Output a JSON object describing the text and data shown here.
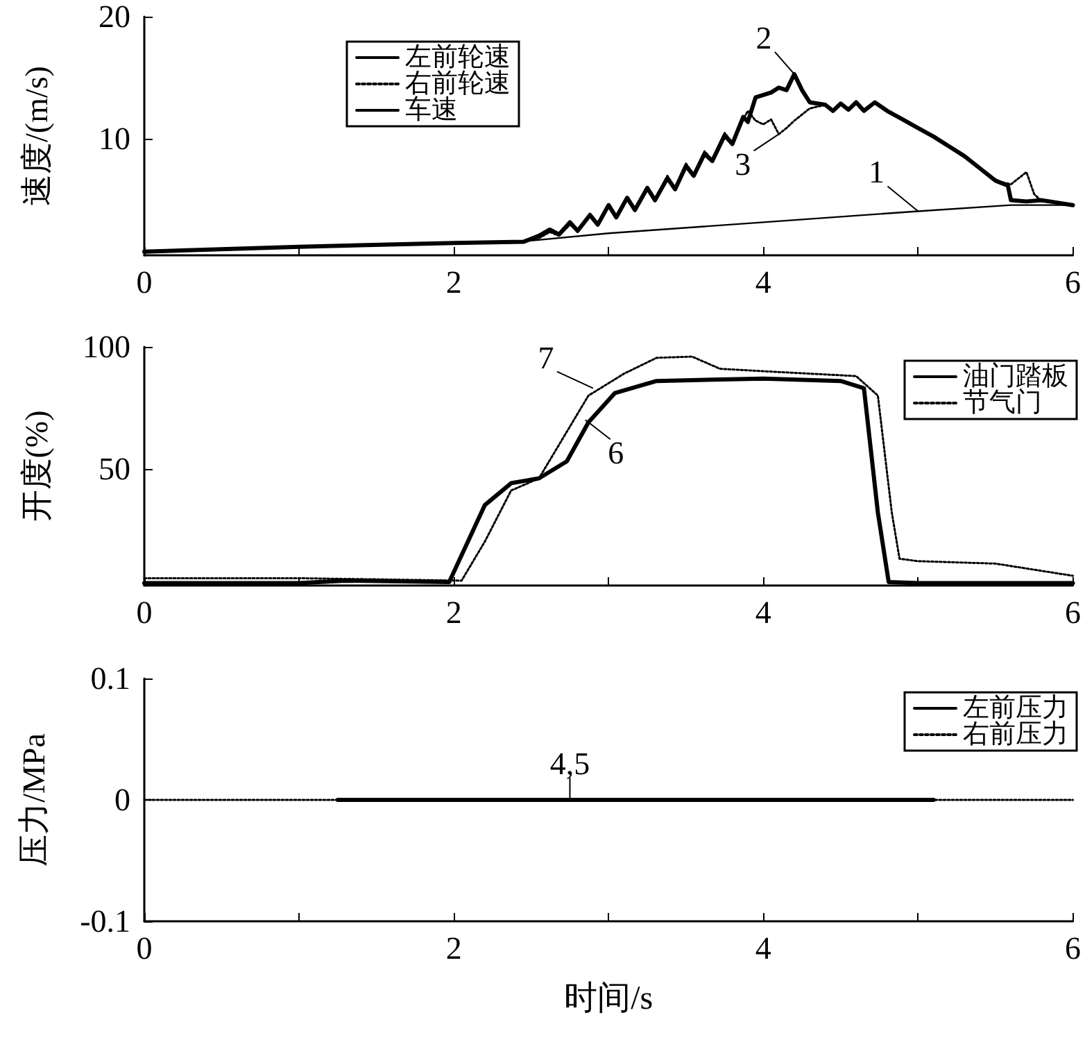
{
  "chart_data": [
    {
      "type": "line",
      "ylabel": "速度/(m/s)",
      "xlim": [
        0,
        6
      ],
      "ylim": [
        0.5,
        20
      ],
      "xticks": [
        0,
        {
          "value": 1,
          "label": null
        },
        2,
        {
          "value": 3,
          "label": null
        },
        4,
        {
          "value": 5,
          "label": null
        },
        6
      ],
      "yticks": [
        10,
        20
      ],
      "legend": "top left",
      "grid": false,
      "marker": "none",
      "annotations": [
        {
          "text": "1",
          "x": 5.0,
          "y": 4.1
        },
        {
          "text": "2",
          "x": 4.2,
          "y": 15.3
        },
        {
          "text": "3",
          "x": 4.1,
          "y": 10.4
        }
      ],
      "series": [
        {
          "name": "左前轮速",
          "color": "#000000",
          "line_style": "solid",
          "x": [
            0,
            1,
            2,
            2.45,
            2.55,
            2.62,
            2.68,
            2.75,
            2.8,
            2.88,
            2.93,
            3.0,
            3.05,
            3.12,
            3.17,
            3.25,
            3.3,
            3.38,
            3.43,
            3.5,
            3.55,
            3.62,
            3.67,
            3.75,
            3.8,
            3.87,
            3.9,
            3.95,
            4.0,
            4.05,
            4.1,
            4.15,
            4.2,
            4.25,
            4.3,
            4.4,
            4.45,
            4.5,
            4.55,
            4.6,
            4.65,
            4.72,
            4.8,
            4.9,
            5.0,
            5.1,
            5.2,
            5.3,
            5.4,
            5.5,
            5.58,
            5.6,
            5.7,
            5.8,
            5.9,
            6.0
          ],
          "values": [
            0.8,
            1.2,
            1.5,
            1.6,
            2.1,
            2.6,
            2.2,
            3.2,
            2.5,
            3.8,
            3.0,
            4.6,
            3.6,
            5.2,
            4.2,
            6.0,
            5.0,
            6.8,
            5.9,
            7.8,
            7.0,
            8.8,
            8.2,
            10.3,
            9.6,
            11.8,
            11.4,
            13.4,
            13.6,
            13.8,
            14.2,
            14.0,
            15.3,
            14.0,
            13.0,
            12.8,
            12.3,
            12.9,
            12.4,
            13.0,
            12.3,
            13.0,
            12.3,
            11.6,
            10.9,
            10.2,
            9.4,
            8.6,
            7.6,
            6.6,
            6.2,
            5.0,
            4.9,
            5.0,
            4.8,
            4.6
          ]
        },
        {
          "name": "右前轮速",
          "color": "#000000",
          "line_style": "dotted",
          "x": [
            0,
            1,
            2,
            2.45,
            2.55,
            2.62,
            2.68,
            2.75,
            2.8,
            2.88,
            2.93,
            3.0,
            3.05,
            3.12,
            3.17,
            3.25,
            3.3,
            3.38,
            3.43,
            3.5,
            3.55,
            3.62,
            3.67,
            3.75,
            3.8,
            3.87,
            3.9,
            3.95,
            4.0,
            4.05,
            4.1,
            4.15,
            4.2,
            4.3,
            4.4,
            4.45,
            4.5,
            4.55,
            4.6,
            4.65,
            4.72,
            4.8,
            4.9,
            5.0,
            5.1,
            5.2,
            5.3,
            5.4,
            5.5,
            5.6,
            5.65,
            5.7,
            5.75,
            5.8,
            5.9,
            6.0
          ],
          "values": [
            0.8,
            1.2,
            1.5,
            1.6,
            1.9,
            2.4,
            2.1,
            3.0,
            2.5,
            3.8,
            3.1,
            4.6,
            3.7,
            5.3,
            4.3,
            6.1,
            5.1,
            7.0,
            6.0,
            8.0,
            7.1,
            9.0,
            8.3,
            10.5,
            9.7,
            11.6,
            12.3,
            11.5,
            11.2,
            11.6,
            10.4,
            10.9,
            11.5,
            12.5,
            12.8,
            12.3,
            12.9,
            12.4,
            13.0,
            12.3,
            13.0,
            12.3,
            11.6,
            10.9,
            10.2,
            9.4,
            8.6,
            7.6,
            6.6,
            6.3,
            6.8,
            7.3,
            5.5,
            4.9,
            4.8,
            4.6
          ]
        },
        {
          "name": "车速",
          "color": "#000000",
          "line_style": "solid",
          "x": [
            0,
            1,
            2,
            2.5,
            3,
            4,
            5,
            5.6,
            6
          ],
          "values": [
            0.8,
            1.2,
            1.5,
            1.7,
            2.3,
            3.2,
            4.1,
            4.6,
            4.6
          ]
        }
      ]
    },
    {
      "type": "line",
      "ylabel": "开度(%)",
      "xlim": [
        0,
        6
      ],
      "ylim": [
        2,
        100
      ],
      "xticks": [
        0,
        {
          "value": 1,
          "label": null
        },
        2,
        {
          "value": 3,
          "label": null
        },
        4,
        {
          "value": 5,
          "label": null
        },
        6
      ],
      "yticks": [
        50,
        100
      ],
      "legend": "top right",
      "grid": false,
      "marker": "none",
      "annotations": [
        {
          "text": "7",
          "x": 2.9,
          "y": 83
        },
        {
          "text": "6",
          "x": 2.85,
          "y": 70
        }
      ],
      "series": [
        {
          "name": "油门踏板",
          "color": "#000000",
          "line_style": "solid",
          "x": [
            0,
            1,
            1.3,
            1.97,
            2.2,
            2.37,
            2.55,
            2.73,
            2.87,
            3.04,
            3.31,
            4.0,
            4.5,
            4.65,
            4.74,
            4.81,
            5.0,
            6.0
          ],
          "values": [
            3,
            3,
            4,
            3.4,
            35,
            44,
            46,
            53,
            69,
            81,
            86,
            87,
            86,
            83,
            32,
            3.4,
            3,
            3
          ]
        },
        {
          "name": "节气门",
          "color": "#000000",
          "line_style": "dotted",
          "x": [
            0,
            1,
            2.05,
            2.2,
            2.37,
            2.55,
            2.87,
            3.1,
            3.31,
            3.54,
            3.72,
            4.0,
            4.6,
            4.74,
            4.83,
            4.88,
            5.0,
            5.5,
            5.8,
            6.0
          ],
          "values": [
            5,
            5,
            4,
            20,
            41,
            46,
            80,
            89,
            95.5,
            96,
            91,
            90,
            88,
            80,
            32,
            13,
            12,
            11,
            8,
            6
          ]
        }
      ]
    },
    {
      "type": "line",
      "xlabel": "时间/s",
      "ylabel": "压力/MPa",
      "xlim": [
        0,
        6
      ],
      "ylim": [
        -0.1,
        0.1
      ],
      "xticks": [
        0,
        {
          "value": 1,
          "label": null
        },
        2,
        {
          "value": 3,
          "label": null
        },
        4,
        {
          "value": 5,
          "label": null
        },
        6
      ],
      "yticks": [
        -0.1,
        0,
        0.1
      ],
      "legend": "top right",
      "grid": false,
      "marker": "none",
      "annotations": [
        {
          "text": "4,5",
          "x": 2.75,
          "y": 0
        }
      ],
      "series": [
        {
          "name": "左前压力",
          "color": "#000000",
          "line_style": "solid",
          "x": [
            1.25,
            5.1
          ],
          "values": [
            0,
            0
          ]
        },
        {
          "name": "右前压力",
          "color": "#000000",
          "line_style": "dotted",
          "x": [
            0,
            6
          ],
          "values": [
            0,
            0
          ]
        }
      ]
    }
  ]
}
